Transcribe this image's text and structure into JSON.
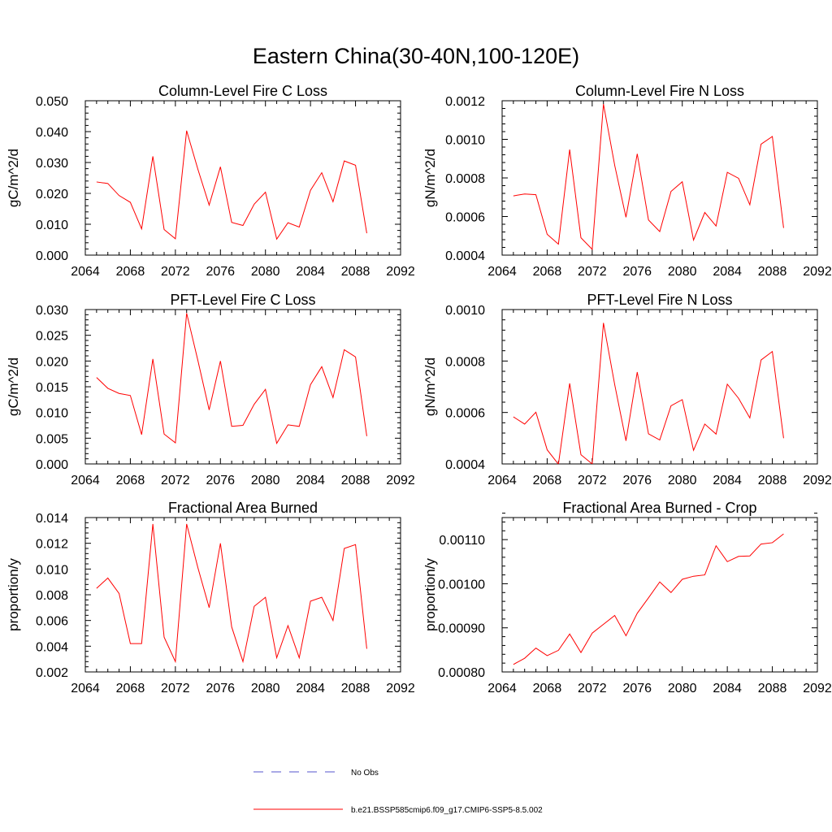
{
  "figure": {
    "title": "Eastern China(30-40N,100-120E)"
  },
  "legend": {
    "placement": "bottom-center",
    "entries": [
      {
        "label": "No Obs",
        "color": "#5555cc",
        "style": "dashed"
      },
      {
        "label": "b.e21.BSSP585cmip6.f09_g17.CMIP6-SSP5-8.5.002",
        "color": "#ff0000",
        "style": "solid"
      }
    ]
  },
  "chart_data": [
    {
      "type": "line",
      "title": "Column-Level Fire C Loss",
      "ylabel": "gC/m^2/d",
      "xlim": [
        2064,
        2092
      ],
      "ylim": [
        0,
        0.05
      ],
      "xticks": [
        "2064",
        "2068",
        "2072",
        "2076",
        "2080",
        "2084",
        "2088",
        "2092"
      ],
      "yticks": [
        "0.000",
        "0.010",
        "0.020",
        "0.030",
        "0.040",
        "0.050"
      ],
      "series": [
        {
          "color": "#ff0000",
          "x": [
            2065,
            2066,
            2067,
            2068,
            2069,
            2070,
            2071,
            2072,
            2073,
            2074,
            2075,
            2076,
            2077,
            2078,
            2079,
            2080,
            2081,
            2082,
            2083,
            2084,
            2085,
            2086,
            2087,
            2088,
            2089
          ],
          "y": [
            0.0237,
            0.0232,
            0.0193,
            0.0171,
            0.0085,
            0.032,
            0.0083,
            0.0053,
            0.0403,
            0.0278,
            0.0162,
            0.0286,
            0.0106,
            0.0096,
            0.0165,
            0.0204,
            0.0052,
            0.0105,
            0.0091,
            0.021,
            0.0267,
            0.0173,
            0.0305,
            0.0291,
            0.0071
          ]
        }
      ]
    },
    {
      "type": "line",
      "title": "Column-Level Fire N Loss",
      "ylabel": "gN/m^2/d",
      "xlim": [
        2064,
        2092
      ],
      "ylim": [
        0.0004,
        0.0012
      ],
      "xticks": [
        "2064",
        "2068",
        "2072",
        "2076",
        "2080",
        "2084",
        "2088",
        "2092"
      ],
      "yticks": [
        "0.0004",
        "0.0006",
        "0.0008",
        "0.0010",
        "0.0012"
      ],
      "series": [
        {
          "color": "#ff0000",
          "x": [
            2065,
            2066,
            2067,
            2068,
            2069,
            2070,
            2071,
            2072,
            2073,
            2074,
            2075,
            2076,
            2077,
            2078,
            2079,
            2080,
            2081,
            2082,
            2083,
            2084,
            2085,
            2086,
            2087,
            2088,
            2089
          ],
          "y": [
            0.000707,
            0.000717,
            0.000713,
            0.000508,
            0.000457,
            0.000947,
            0.00049,
            0.00043,
            0.001183,
            0.000865,
            0.000596,
            0.000925,
            0.000582,
            0.000522,
            0.00073,
            0.00078,
            0.000478,
            0.000621,
            0.000551,
            0.000829,
            0.000798,
            0.000661,
            0.000975,
            0.001015,
            0.000541
          ]
        }
      ]
    },
    {
      "type": "line",
      "title": "PFT-Level Fire C Loss",
      "ylabel": "gC/m^2/d",
      "xlim": [
        2064,
        2092
      ],
      "ylim": [
        0,
        0.03
      ],
      "xticks": [
        "2064",
        "2068",
        "2072",
        "2076",
        "2080",
        "2084",
        "2088",
        "2092"
      ],
      "yticks": [
        "0.000",
        "0.005",
        "0.010",
        "0.015",
        "0.020",
        "0.025",
        "0.030"
      ],
      "series": [
        {
          "color": "#ff0000",
          "x": [
            2065,
            2066,
            2067,
            2068,
            2069,
            2070,
            2071,
            2072,
            2073,
            2074,
            2075,
            2076,
            2077,
            2078,
            2079,
            2080,
            2081,
            2082,
            2083,
            2084,
            2085,
            2086,
            2087,
            2088,
            2089
          ],
          "y": [
            0.0168,
            0.0147,
            0.0137,
            0.0133,
            0.0057,
            0.0204,
            0.0058,
            0.0041,
            0.0293,
            0.0201,
            0.0105,
            0.02,
            0.0073,
            0.0075,
            0.0116,
            0.0145,
            0.004,
            0.0076,
            0.0073,
            0.0154,
            0.0189,
            0.0129,
            0.0222,
            0.0208,
            0.0054
          ]
        }
      ]
    },
    {
      "type": "line",
      "title": "PFT-Level Fire N Loss",
      "ylabel": "gN/m^2/d",
      "xlim": [
        2064,
        2092
      ],
      "ylim": [
        0.0004,
        0.001
      ],
      "xticks": [
        "2064",
        "2068",
        "2072",
        "2076",
        "2080",
        "2084",
        "2088",
        "2092"
      ],
      "yticks": [
        "0.0004",
        "0.0006",
        "0.0008",
        "0.0010"
      ],
      "series": [
        {
          "color": "#ff0000",
          "x": [
            2065,
            2066,
            2067,
            2068,
            2069,
            2070,
            2071,
            2072,
            2073,
            2074,
            2075,
            2076,
            2077,
            2078,
            2079,
            2080,
            2081,
            2082,
            2083,
            2084,
            2085,
            2086,
            2087,
            2088,
            2089
          ],
          "y": [
            0.000583,
            0.000555,
            0.000601,
            0.000455,
            0.000399,
            0.000713,
            0.000436,
            0.0004,
            0.000948,
            0.000708,
            0.00049,
            0.000757,
            0.000517,
            0.000493,
            0.000626,
            0.00065,
            0.000453,
            0.000555,
            0.000516,
            0.00071,
            0.000655,
            0.000579,
            0.000804,
            0.000837,
            0.0005
          ]
        }
      ]
    },
    {
      "type": "line",
      "title": "Fractional Area Burned",
      "ylabel": "proportion/y",
      "xlim": [
        2064,
        2092
      ],
      "ylim": [
        0.002,
        0.014
      ],
      "xticks": [
        "2064",
        "2068",
        "2072",
        "2076",
        "2080",
        "2084",
        "2088",
        "2092"
      ],
      "yticks": [
        "0.002",
        "0.004",
        "0.006",
        "0.008",
        "0.010",
        "0.012",
        "0.014"
      ],
      "series": [
        {
          "color": "#ff0000",
          "x": [
            2065,
            2066,
            2067,
            2068,
            2069,
            2070,
            2071,
            2072,
            2073,
            2074,
            2075,
            2076,
            2077,
            2078,
            2079,
            2080,
            2081,
            2082,
            2083,
            2084,
            2085,
            2086,
            2087,
            2088,
            2089
          ],
          "y": [
            0.0085,
            0.0093,
            0.0081,
            0.0042,
            0.0042,
            0.0135,
            0.0047,
            0.0028,
            0.0135,
            0.0101,
            0.007,
            0.012,
            0.0055,
            0.0028,
            0.0071,
            0.0078,
            0.0031,
            0.0056,
            0.0031,
            0.0075,
            0.0078,
            0.006,
            0.0116,
            0.0119,
            0.0038
          ]
        }
      ]
    },
    {
      "type": "line",
      "title": "Fractional Area Burned - Crop",
      "ylabel": "proportion/y",
      "xlim": [
        2064,
        2092
      ],
      "ylim": [
        0.0008,
        0.00115
      ],
      "xticks": [
        "2064",
        "2068",
        "2072",
        "2076",
        "2080",
        "2084",
        "2088",
        "2092"
      ],
      "yticks": [
        "0.00080",
        "0.00090",
        "0.00100",
        "0.00110"
      ],
      "series": [
        {
          "color": "#ff0000",
          "x": [
            2065,
            2066,
            2067,
            2068,
            2069,
            2070,
            2071,
            2072,
            2073,
            2074,
            2075,
            2076,
            2077,
            2078,
            2079,
            2080,
            2081,
            2082,
            2083,
            2084,
            2085,
            2086,
            2087,
            2088,
            2089
          ],
          "y": [
            0.000817,
            0.000831,
            0.000854,
            0.000837,
            0.000849,
            0.000886,
            0.000844,
            0.000888,
            0.000908,
            0.000928,
            0.000882,
            0.000933,
            0.000968,
            0.001004,
            0.00098,
            0.00101,
            0.001017,
            0.00102,
            0.001086,
            0.00105,
            0.001062,
            0.001063,
            0.00109,
            0.001093,
            0.001113
          ]
        }
      ]
    }
  ]
}
